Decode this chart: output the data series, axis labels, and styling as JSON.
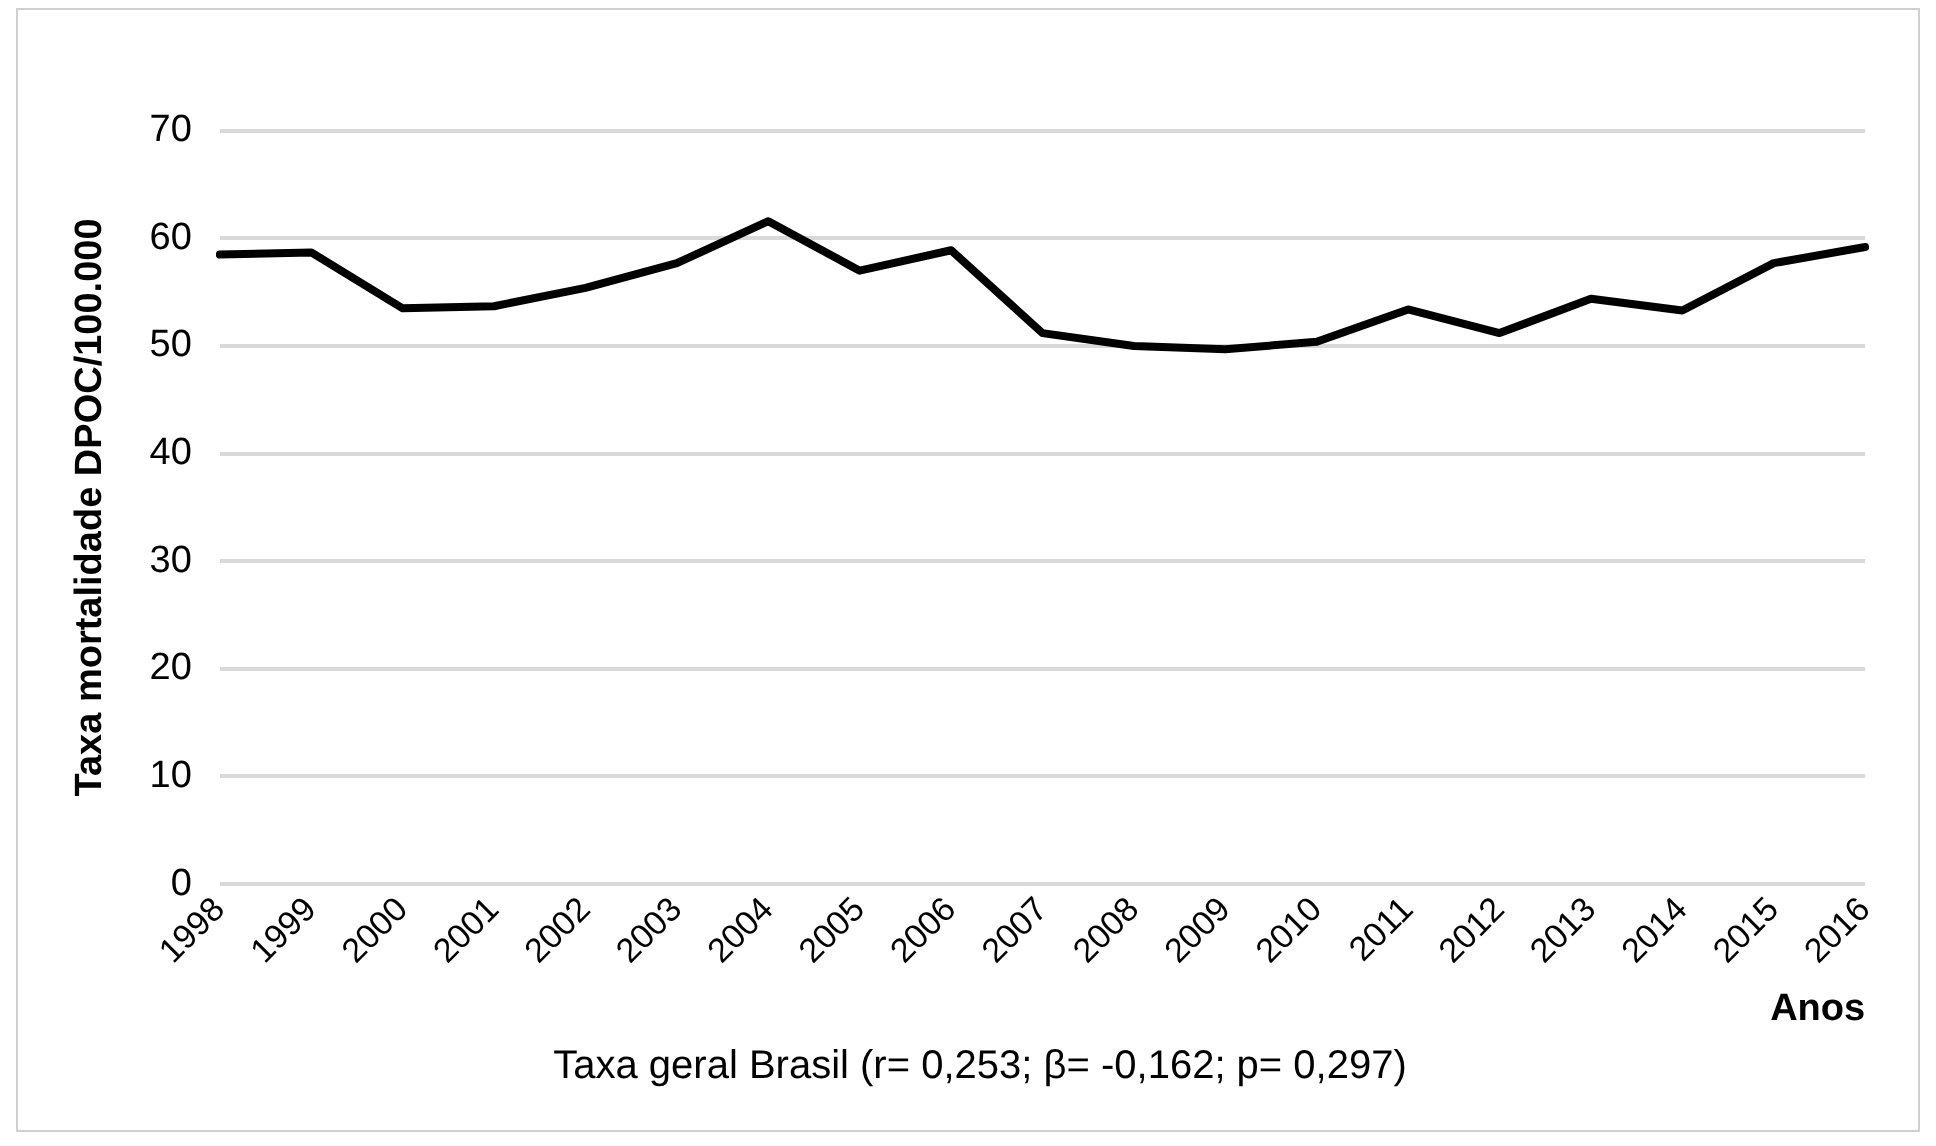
{
  "chart_data": {
    "type": "line",
    "xlabel": "Anos",
    "ylabel": "Taxa mortalidade DPOC/100.000",
    "categories": [
      "1998",
      "1999",
      "2000",
      "2001",
      "2002",
      "2003",
      "2004",
      "2005",
      "2006",
      "2007",
      "2008",
      "2009",
      "2010",
      "2011",
      "2012",
      "2013",
      "2014",
      "2015",
      "2016"
    ],
    "series": [
      {
        "color": "#000000",
        "values": [
          58.5,
          58.7,
          53.5,
          53.7,
          55.4,
          57.7,
          61.6,
          57.0,
          58.9,
          51.2,
          50.0,
          49.7,
          50.4,
          53.4,
          51.2,
          54.4,
          53.3,
          57.7,
          59.2
        ]
      }
    ],
    "ylim": [
      0,
      70
    ],
    "yticks": [
      0,
      10,
      20,
      30,
      40,
      50,
      60,
      70
    ],
    "grid": "y",
    "legend": false,
    "marker": "none",
    "line_style": "solid",
    "annotations": [
      "Taxa geral Brasil (r= 0,253; β= -0,162; p= 0,297)"
    ]
  }
}
